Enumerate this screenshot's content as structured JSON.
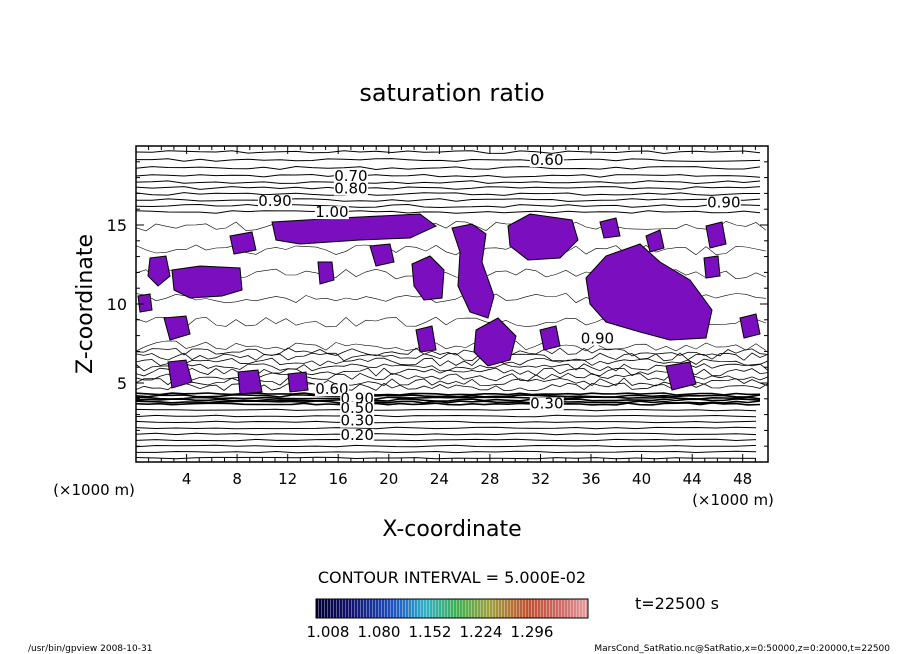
{
  "chart_data": {
    "type": "heatmap",
    "title": "saturation ratio",
    "xlabel": "X-coordinate",
    "ylabel": "Z-coordinate",
    "x_unit_left": "(×1000 m)",
    "x_unit_right": "(×1000 m)",
    "xlim": [
      0,
      50
    ],
    "ylim": [
      0,
      20
    ],
    "x_ticks": [
      4,
      8,
      12,
      16,
      20,
      24,
      28,
      32,
      36,
      40,
      44,
      48
    ],
    "x_tick_labels": [
      "4",
      "8",
      "12",
      "16",
      "20",
      "24",
      "28",
      "32",
      "36",
      "40",
      "44",
      "48"
    ],
    "y_ticks": [
      5,
      10,
      15
    ],
    "y_tick_labels": [
      "5",
      "10",
      "15"
    ],
    "contour_interval_label": "CONTOUR INTERVAL = 5.000E-02",
    "time_label": "t=22500 s",
    "colorbar": {
      "tick_labels": [
        "1.008",
        "1.080",
        "1.152",
        "1.224",
        "1.296"
      ],
      "range": [
        1.008,
        1.296
      ]
    },
    "fill_color": "#7b0fbf",
    "contour_labels": [
      {
        "text": "0.60",
        "x": 32.5,
        "z": 18.8
      },
      {
        "text": "0.70",
        "x": 17.0,
        "z": 17.8
      },
      {
        "text": "0.80",
        "x": 17.0,
        "z": 17.0
      },
      {
        "text": "0.90",
        "x": 11.0,
        "z": 16.2
      },
      {
        "text": "0.90",
        "x": 46.5,
        "z": 16.1
      },
      {
        "text": "1.00",
        "x": 15.5,
        "z": 15.5
      },
      {
        "text": "0.90",
        "x": 36.5,
        "z": 7.5
      },
      {
        "text": "0.60",
        "x": 15.5,
        "z": 4.3
      },
      {
        "text": "0.90",
        "x": 17.5,
        "z": 3.7
      },
      {
        "text": "0.30",
        "x": 32.5,
        "z": 3.4
      },
      {
        "text": "0.50",
        "x": 17.5,
        "z": 3.1
      },
      {
        "text": "0.30",
        "x": 17.5,
        "z": 2.3
      },
      {
        "text": "0.20",
        "x": 17.5,
        "z": 1.4
      }
    ]
  },
  "footer": {
    "left": "/usr/bin/gpview   2008-10-31",
    "right": "MarsCond_SatRatio.nc@SatRatio,x=0:50000,z=0:20000,t=22500"
  }
}
